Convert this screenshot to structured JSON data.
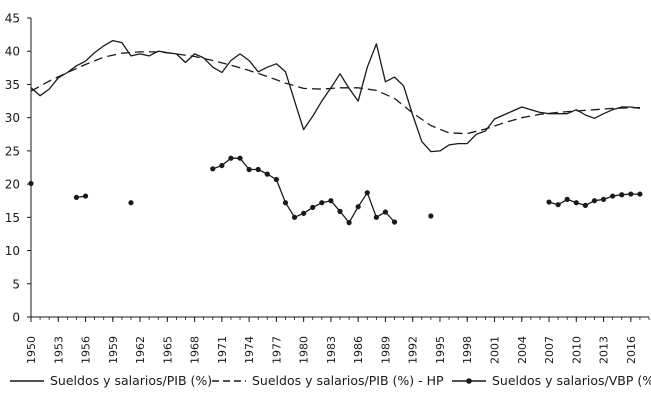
{
  "chart_data": {
    "type": "line",
    "ylim": [
      0,
      45
    ],
    "yticks": [
      "0",
      "5",
      "10",
      "15",
      "20",
      "25",
      "30",
      "35",
      "40",
      "45"
    ],
    "xlim": [
      1950,
      2018
    ],
    "xticks": [
      "1950",
      "1953",
      "1956",
      "1959",
      "1962",
      "1965",
      "1968",
      "1971",
      "1974",
      "1977",
      "1980",
      "1983",
      "1986",
      "1989",
      "1992",
      "1995",
      "1998",
      "2001",
      "2004",
      "2007",
      "2010",
      "2013",
      "2016"
    ],
    "grid": false,
    "legend_position": "bottom",
    "series": [
      {
        "name": "Sueldos y salarios/PIB (%)",
        "style": "solid",
        "x": [
          1950,
          1951,
          1952,
          1953,
          1954,
          1955,
          1956,
          1957,
          1958,
          1959,
          1960,
          1961,
          1962,
          1963,
          1964,
          1965,
          1966,
          1967,
          1968,
          1969,
          1970,
          1971,
          1972,
          1973,
          1974,
          1975,
          1976,
          1977,
          1978,
          1979,
          1980,
          1981,
          1982,
          1983,
          1984,
          1985,
          1986,
          1987,
          1988,
          1989,
          1990,
          1991,
          1992,
          1993,
          1994,
          1995,
          1996,
          1997,
          1998,
          1999,
          2000,
          2001,
          2002,
          2003,
          2004,
          2005,
          2006,
          2007,
          2008,
          2009,
          2010,
          2011,
          2012,
          2013,
          2014,
          2015,
          2016,
          2017
        ],
        "values": [
          34.5,
          33.3,
          34.3,
          36.0,
          36.8,
          37.8,
          38.5,
          39.8,
          40.8,
          41.6,
          41.3,
          39.3,
          39.6,
          39.3,
          40.0,
          39.8,
          39.6,
          38.3,
          39.6,
          39.0,
          37.6,
          36.8,
          38.6,
          39.6,
          38.6,
          36.9,
          37.6,
          38.1,
          36.9,
          32.5,
          28.2,
          30.2,
          32.5,
          34.5,
          36.6,
          34.4,
          32.5,
          37.6,
          41.1,
          35.4,
          36.1,
          34.8,
          30.4,
          26.4,
          24.9,
          25.0,
          25.9,
          26.1,
          26.1,
          27.5,
          28.0,
          29.8,
          30.4,
          31.0,
          31.6,
          31.2,
          30.8,
          30.6,
          30.6,
          30.6,
          31.2,
          30.4,
          29.9,
          30.6,
          31.2,
          31.6,
          31.6,
          31.4
        ],
        "color": "#1a1a1a"
      },
      {
        "name": "Sueldos y salarios/PIB (%) - HP",
        "style": "dashed",
        "x": [
          1950,
          1952,
          1954,
          1956,
          1958,
          1960,
          1962,
          1964,
          1966,
          1968,
          1970,
          1972,
          1974,
          1976,
          1978,
          1980,
          1982,
          1984,
          1986,
          1988,
          1990,
          1992,
          1994,
          1996,
          1998,
          2000,
          2002,
          2004,
          2006,
          2008,
          2010,
          2012,
          2014,
          2016,
          2017
        ],
        "values": [
          34.0,
          35.5,
          36.8,
          38.0,
          39.1,
          39.7,
          39.9,
          39.9,
          39.6,
          39.2,
          38.6,
          37.9,
          37.1,
          36.2,
          35.2,
          34.4,
          34.3,
          34.5,
          34.5,
          34.1,
          32.9,
          30.7,
          28.8,
          27.7,
          27.6,
          28.3,
          29.2,
          30.0,
          30.5,
          30.8,
          31.0,
          31.2,
          31.4,
          31.5,
          31.5
        ],
        "color": "#1a1a1a"
      },
      {
        "name": "Sueldos y salarios/VBP (%)",
        "style": "line-markers",
        "segments": [
          {
            "x": [
              1950
            ],
            "values": [
              20.1
            ]
          },
          {
            "x": [
              1955,
              1956
            ],
            "values": [
              18.0,
              18.2
            ]
          },
          {
            "x": [
              1961
            ],
            "values": [
              17.2
            ]
          },
          {
            "x": [
              1970,
              1971,
              1972,
              1973,
              1974,
              1975,
              1976,
              1977,
              1978,
              1979,
              1980,
              1981,
              1982,
              1983,
              1984,
              1985,
              1986,
              1987,
              1988,
              1989,
              1990
            ],
            "values": [
              22.3,
              22.8,
              23.9,
              23.9,
              22.2,
              22.2,
              21.5,
              20.7,
              17.2,
              15.0,
              15.6,
              16.5,
              17.2,
              17.5,
              15.9,
              14.2,
              16.6,
              18.7,
              15.0,
              15.8,
              14.3
            ]
          },
          {
            "x": [
              1994
            ],
            "values": [
              15.2
            ]
          },
          {
            "x": [
              2007,
              2008,
              2009,
              2010,
              2011,
              2012,
              2013,
              2014,
              2015,
              2016,
              2017
            ],
            "values": [
              17.3,
              16.9,
              17.7,
              17.2,
              16.8,
              17.5,
              17.7,
              18.2,
              18.4,
              18.5,
              18.5
            ]
          }
        ],
        "color": "#1a1a1a"
      }
    ]
  }
}
